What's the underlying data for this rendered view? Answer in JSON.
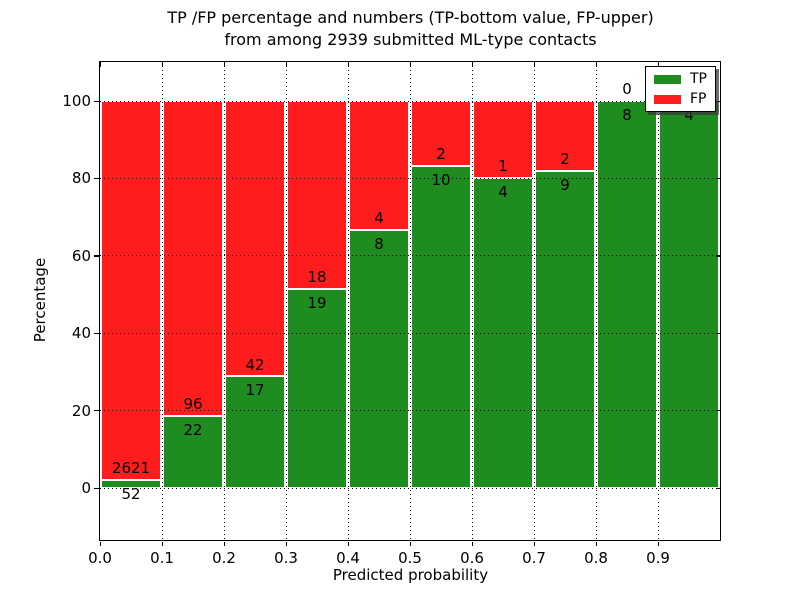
{
  "chart_data": {
    "type": "bar",
    "stacked": true,
    "normalized": "each bin scaled to 100 percent",
    "title_line1": "TP /FP percentage and numbers (TP-bottom value, FP-upper)",
    "title_line2": "from among 2939 submitted ML-type contacts",
    "xlabel": "Predicted probability",
    "ylabel": "Percentage",
    "xlim": [
      0.0,
      1.0
    ],
    "x_tick_labels": [
      "0.0",
      "0.1",
      "0.2",
      "0.3",
      "0.4",
      "0.5",
      "0.6",
      "0.7",
      "0.8",
      "0.9"
    ],
    "y_tick_values": [
      0,
      20,
      40,
      60,
      80,
      100
    ],
    "y_tick_labels": [
      "0",
      "20",
      "40",
      "60",
      "80",
      "100"
    ],
    "grid": "dotted black, horizontal and vertical",
    "colors": {
      "tp": "#1e8c1e",
      "fp": "#ff1c1c",
      "background": "#ffffff",
      "text": "#000000"
    },
    "legend": {
      "position": "upper-right",
      "entries": [
        {
          "label": "TP",
          "color_key": "tp"
        },
        {
          "label": "FP",
          "color_key": "fp"
        }
      ]
    },
    "bins": [
      {
        "x_range": [
          0.0,
          0.1
        ],
        "tp_count": 52,
        "fp_count": 2621
      },
      {
        "x_range": [
          0.1,
          0.2
        ],
        "tp_count": 22,
        "fp_count": 96
      },
      {
        "x_range": [
          0.2,
          0.3
        ],
        "tp_count": 17,
        "fp_count": 42
      },
      {
        "x_range": [
          0.3,
          0.4
        ],
        "tp_count": 19,
        "fp_count": 18
      },
      {
        "x_range": [
          0.4,
          0.5
        ],
        "tp_count": 8,
        "fp_count": 4
      },
      {
        "x_range": [
          0.5,
          0.6
        ],
        "tp_count": 10,
        "fp_count": 2
      },
      {
        "x_range": [
          0.6,
          0.7
        ],
        "tp_count": 4,
        "fp_count": 1
      },
      {
        "x_range": [
          0.7,
          0.8
        ],
        "tp_count": 9,
        "fp_count": 2
      },
      {
        "x_range": [
          0.8,
          0.9
        ],
        "tp_count": 8,
        "fp_count": 0
      },
      {
        "x_range": [
          0.9,
          1.0
        ],
        "tp_count": 4,
        "fp_count": 0,
        "fp_label_visible": false
      }
    ]
  }
}
